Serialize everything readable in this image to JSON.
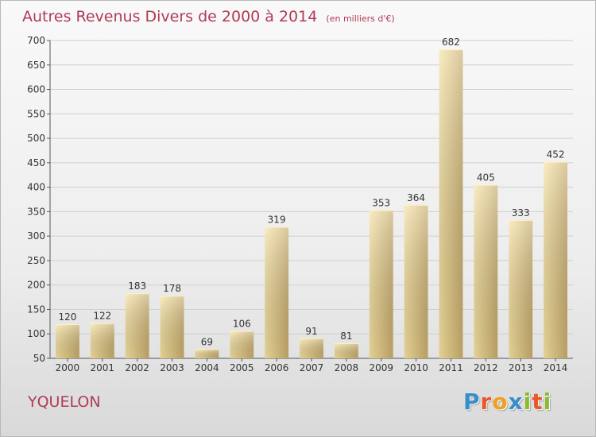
{
  "title": "Autres Revenus Divers de 2000 à 2014",
  "unit": "(en milliers d'€)",
  "commune": "YQUELON",
  "logo": {
    "letters": [
      "P",
      "r",
      "o",
      "x",
      "i",
      "t",
      "i"
    ],
    "colors": [
      "#3a8ec8",
      "#e8572a",
      "#f0a020",
      "#3a8ec8",
      "#8cbb2a",
      "#e8572a",
      "#8cbb2a"
    ]
  },
  "colors": {
    "title": "#b03a57",
    "bar_light": "#f7e3a1",
    "bar_dark": "#c8ac6c"
  },
  "chart_data": {
    "type": "bar",
    "categories": [
      "2000",
      "2001",
      "2002",
      "2003",
      "2004",
      "2005",
      "2006",
      "2007",
      "2008",
      "2009",
      "2010",
      "2011",
      "2012",
      "2013",
      "2014"
    ],
    "values": [
      120,
      122,
      183,
      178,
      69,
      106,
      319,
      91,
      81,
      353,
      364,
      682,
      405,
      333,
      452
    ],
    "ylim": [
      50,
      700
    ],
    "yticks": [
      50,
      100,
      150,
      200,
      250,
      300,
      350,
      400,
      450,
      500,
      550,
      600,
      650,
      700
    ],
    "grid": true,
    "data_labels": true
  }
}
